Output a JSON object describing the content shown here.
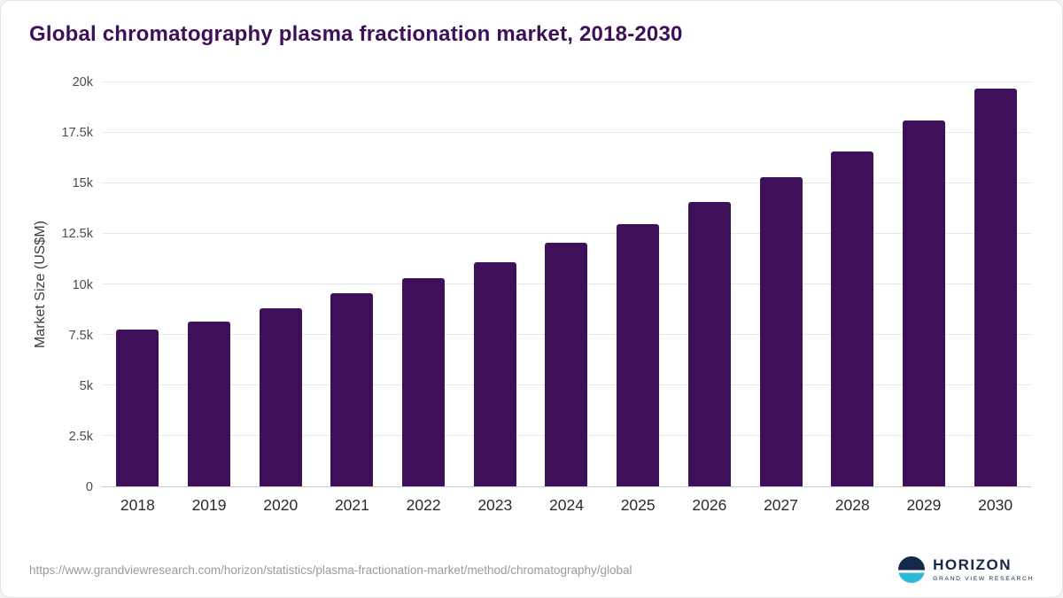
{
  "title": "Global chromatography plasma fractionation market, 2018-2030",
  "colors": {
    "bar": "#3d1059",
    "title": "#3d1059",
    "grid": "#e7e7e7",
    "axis": "#c9c9c9",
    "tick_label": "#4d4d4d",
    "x_label": "#2b2b2b",
    "footer_text": "#9b9b9b",
    "logo_navy": "#13294a",
    "logo_teal": "#2bb8d9"
  },
  "chart_data": {
    "type": "bar",
    "title": "Global chromatography plasma fractionation market, 2018-2030",
    "categories": [
      "2018",
      "2019",
      "2020",
      "2021",
      "2022",
      "2023",
      "2024",
      "2025",
      "2026",
      "2027",
      "2028",
      "2029",
      "2030"
    ],
    "values": [
      7750,
      8150,
      8800,
      9550,
      10300,
      11100,
      12050,
      13000,
      14100,
      15300,
      16600,
      18100,
      19700
    ],
    "xlabel": "",
    "ylabel": "Market Size (US$M)",
    "ylim": [
      0,
      20000
    ],
    "yticks": [
      {
        "value": 0,
        "label": "0"
      },
      {
        "value": 2500,
        "label": "2.5k"
      },
      {
        "value": 5000,
        "label": "5k"
      },
      {
        "value": 7500,
        "label": "7.5k"
      },
      {
        "value": 10000,
        "label": "10k"
      },
      {
        "value": 12500,
        "label": "12.5k"
      },
      {
        "value": 15000,
        "label": "15k"
      },
      {
        "value": 17500,
        "label": "17.5k"
      },
      {
        "value": 20000,
        "label": "20k"
      }
    ],
    "grid": true,
    "legend": false
  },
  "footer": {
    "source_url": "https://www.grandviewresearch.com/horizon/statistics/plasma-fractionation-market/method/chromatography/global",
    "logo_name": "HORIZON",
    "logo_subtext": "GRAND VIEW RESEARCH"
  }
}
